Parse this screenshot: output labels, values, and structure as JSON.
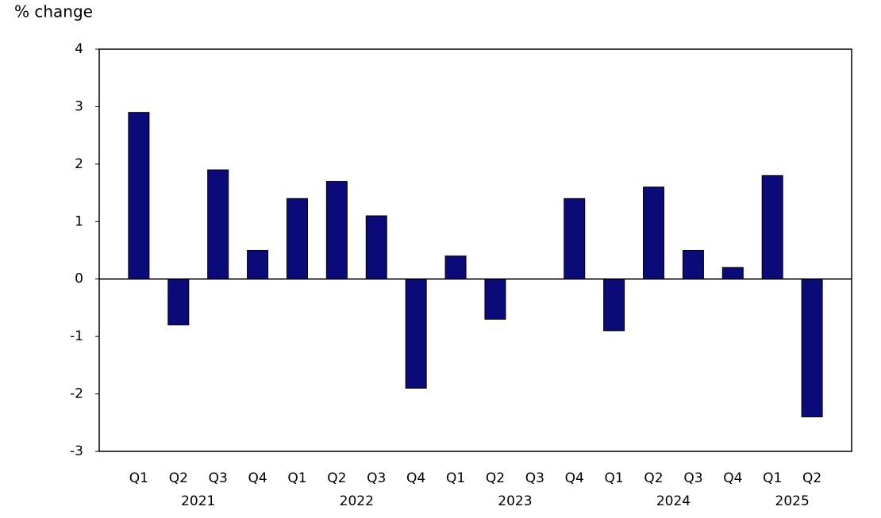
{
  "chart_data": {
    "type": "bar",
    "y_label": "% change",
    "category_groups": [
      {
        "label": "2021",
        "categories": [
          "Q1",
          "Q2",
          "Q3",
          "Q4"
        ]
      },
      {
        "label": "2022",
        "categories": [
          "Q1",
          "Q2",
          "Q3",
          "Q4"
        ]
      },
      {
        "label": "2023",
        "categories": [
          "Q1",
          "Q2",
          "Q3",
          "Q4"
        ]
      },
      {
        "label": "2024",
        "categories": [
          "Q1",
          "Q2",
          "Q3",
          "Q4"
        ]
      },
      {
        "label": "2025",
        "categories": [
          "Q1",
          "Q2"
        ]
      }
    ],
    "values": [
      2.9,
      -0.8,
      1.9,
      0.5,
      1.4,
      1.7,
      1.1,
      -1.9,
      0.4,
      -0.7,
      0,
      1.4,
      -0.9,
      1.6,
      0.5,
      0.2,
      1.8,
      -2.4
    ],
    "color": "#0a0a78",
    "ylim": [
      -3,
      4
    ],
    "yticks": [
      -3,
      -2,
      -1,
      0,
      1,
      2,
      3,
      4
    ],
    "grid": false
  }
}
